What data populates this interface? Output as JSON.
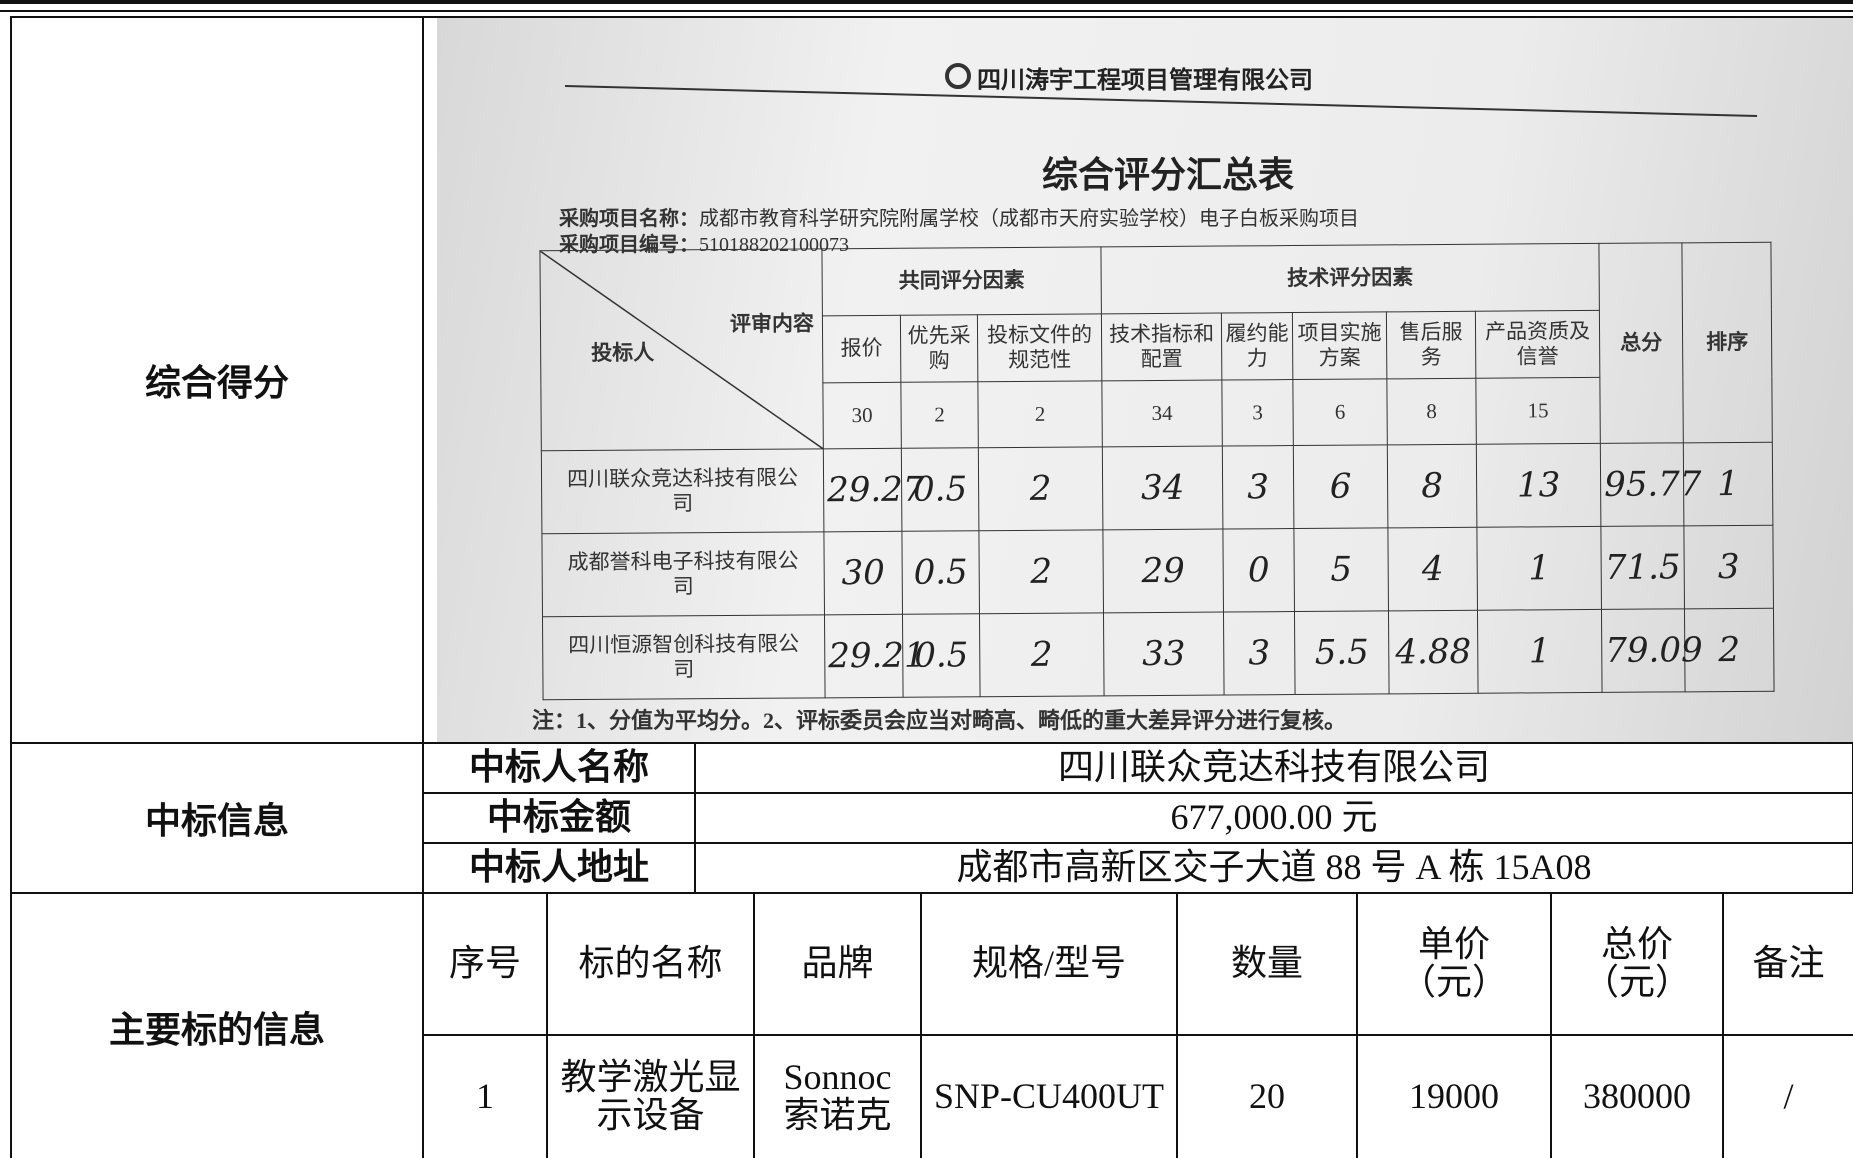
{
  "score_section": {
    "label": "综合得分",
    "photo": {
      "company": "四川涛宇工程项目管理有限公司",
      "title": "综合评分汇总表",
      "project_name_label": "采购项目名称：",
      "project_name": "成都市教育科学研究院附属学校（成都市天府实验学校）电子白板采购项目",
      "project_no_label": "采购项目编号：",
      "project_no": "510188202100073",
      "header": {
        "diag_top": "评审内容",
        "diag_bottom": "投标人",
        "group1": "共同评分因素",
        "group2": "技术评分因素",
        "columns": [
          "报价",
          "优先采购",
          "投标文件的规范性",
          "技术指标和配置",
          "履约能力",
          "项目实施方案",
          "售后服务",
          "产品资质及信誉"
        ],
        "weights": [
          "30",
          "2",
          "2",
          "34",
          "3",
          "6",
          "8",
          "15"
        ],
        "total": "总分",
        "rank": "排序"
      },
      "rows": [
        {
          "bidder": "四川联众竞达科技有限公司",
          "scores": [
            "29.27",
            "0.5",
            "2",
            "34",
            "3",
            "6",
            "8",
            "13"
          ],
          "total": "95.77",
          "rank": "1"
        },
        {
          "bidder": "成都誉科电子科技有限公司",
          "scores": [
            "30",
            "0.5",
            "2",
            "29",
            "0",
            "5",
            "4",
            "1"
          ],
          "total": "71.5",
          "rank": "3"
        },
        {
          "bidder": "四川恒源智创科技有限公司",
          "scores": [
            "29.21",
            "0.5",
            "2",
            "33",
            "3",
            "5.5",
            "4.88",
            "1"
          ],
          "total": "79.09",
          "rank": "2"
        }
      ],
      "note": "注：1、分值为平均分。2、评标委员会应当对畸高、畸低的重大差异评分进行复核。"
    }
  },
  "award_section": {
    "label": "中标信息",
    "items": [
      {
        "label": "中标人名称",
        "value": "四川联众竞达科技有限公司"
      },
      {
        "label": "中标金额",
        "value": "677,000.00 元"
      },
      {
        "label": "中标人地址",
        "value": "成都市高新区交子大道 88 号 A 栋 15A08"
      }
    ]
  },
  "items_section": {
    "label": "主要标的信息",
    "headers": [
      "序号",
      "标的名称",
      "品牌",
      "规格/型号",
      "数量",
      "单价（元）",
      "总价（元）",
      "备注"
    ],
    "rows": [
      [
        "1",
        "教学激光显示设备",
        "Sonnoc索诺克",
        "SNP-CU400UT",
        "20",
        "19000",
        "380000",
        "/"
      ]
    ]
  }
}
